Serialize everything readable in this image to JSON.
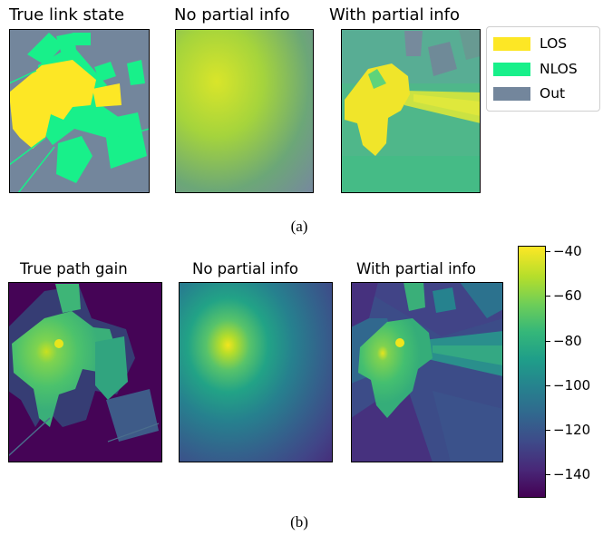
{
  "row_a": {
    "titles": [
      "True link state",
      "No partial info",
      "With partial info"
    ],
    "caption": "(a)"
  },
  "legend": {
    "items": [
      {
        "label": "LOS",
        "color": "#fde725"
      },
      {
        "label": "NLOS",
        "color": "#18f08a"
      },
      {
        "label": "Out",
        "color": "#73869c"
      }
    ]
  },
  "row_b": {
    "titles": [
      "True path gain",
      "No partial info",
      "With partial info"
    ],
    "caption": "(b)"
  },
  "colorbar": {
    "ticks": [
      "−40",
      "−60",
      "−80",
      "−100",
      "−120",
      "−140"
    ],
    "tick_values": [
      -40,
      -60,
      -80,
      -100,
      -120,
      -140
    ],
    "vmin": -150,
    "vmax": -38,
    "colormap": "viridis"
  }
}
